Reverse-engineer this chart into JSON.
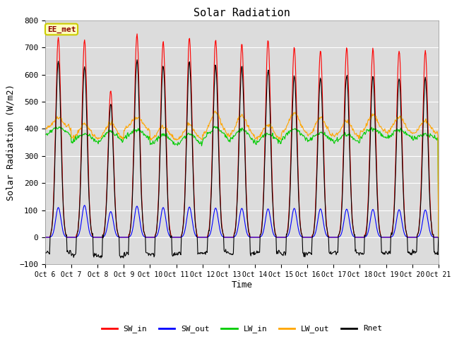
{
  "title": "Solar Radiation",
  "ylabel": "Solar Radiation (W/m2)",
  "xlabel": "Time",
  "ylim": [
    -100,
    800
  ],
  "annotation": "EE_met",
  "plot_bg_color": "#e8e8e8",
  "colors": {
    "SW_in": "#ff0000",
    "SW_out": "#0000ff",
    "LW_in": "#00cc00",
    "LW_out": "#ffa500",
    "Rnet": "#000000"
  },
  "legend_labels": [
    "SW_in",
    "SW_out",
    "LW_in",
    "LW_out",
    "Rnet"
  ],
  "xtick_labels": [
    "Oct 6",
    "Oct 7",
    "Oct 8",
    "Oct 9",
    "Oct 10",
    "Oct 11",
    "Oct 12",
    "Oct 13",
    "Oct 14",
    "Oct 15",
    "Oct 16",
    "Oct 17",
    "Oct 18",
    "Oct 19",
    "Oct 20",
    "Oct 21"
  ],
  "n_days": 15,
  "pts_per_day": 48,
  "SW_in_peak": [
    738,
    727,
    543,
    750,
    722,
    735,
    731,
    712,
    728,
    703,
    692,
    700,
    695,
    690,
    688
  ],
  "SW_out_peak": [
    110,
    118,
    95,
    115,
    110,
    112,
    108,
    107,
    105,
    107,
    105,
    104,
    103,
    102,
    101
  ],
  "LW_in_night": [
    370,
    345,
    340,
    360,
    335,
    330,
    350,
    345,
    340,
    350,
    345,
    340,
    360,
    358,
    355
  ],
  "LW_in_day": [
    405,
    380,
    390,
    395,
    375,
    380,
    405,
    395,
    380,
    400,
    385,
    380,
    400,
    395,
    380
  ],
  "LW_out_night": [
    400,
    365,
    358,
    395,
    360,
    355,
    375,
    370,
    360,
    380,
    372,
    368,
    385,
    382,
    378
  ],
  "LW_out_day": [
    440,
    415,
    425,
    445,
    410,
    415,
    460,
    450,
    415,
    460,
    440,
    428,
    450,
    445,
    430
  ],
  "Rnet_peak": [
    650,
    630,
    490,
    655,
    635,
    650,
    635,
    630,
    620,
    600,
    590,
    600,
    595,
    590,
    585
  ],
  "Rnet_night": [
    -55,
    -65,
    -70,
    -60,
    -65,
    -60,
    -55,
    -60,
    -55,
    -60,
    -58,
    -55,
    -60,
    -58,
    -55
  ]
}
